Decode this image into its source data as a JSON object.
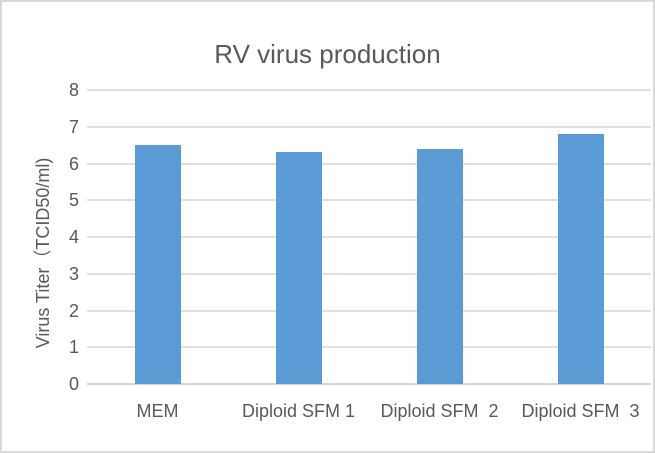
{
  "chart": {
    "background_color": "#ffffff",
    "border_color": "#d9d9d9"
  },
  "chart_data": {
    "type": "bar",
    "title": "RV virus production",
    "categories": [
      "MEM",
      "Diploid SFM 1",
      "Diploid SFM  2",
      "Diploid SFM  3"
    ],
    "values": [
      6.5,
      6.3,
      6.4,
      6.8
    ],
    "xlabel": "",
    "ylabel": "Virus Titer（TCID50/ml)",
    "ylim": [
      0,
      8
    ],
    "yticks": [
      0,
      1,
      2,
      3,
      4,
      5,
      6,
      7,
      8
    ],
    "grid": true,
    "legend": "none",
    "bar_color": "#5b9bd5",
    "gridline_color": "#e0e0e0",
    "axis_line_color": "#d4d4d4",
    "text_color": "#595959"
  }
}
